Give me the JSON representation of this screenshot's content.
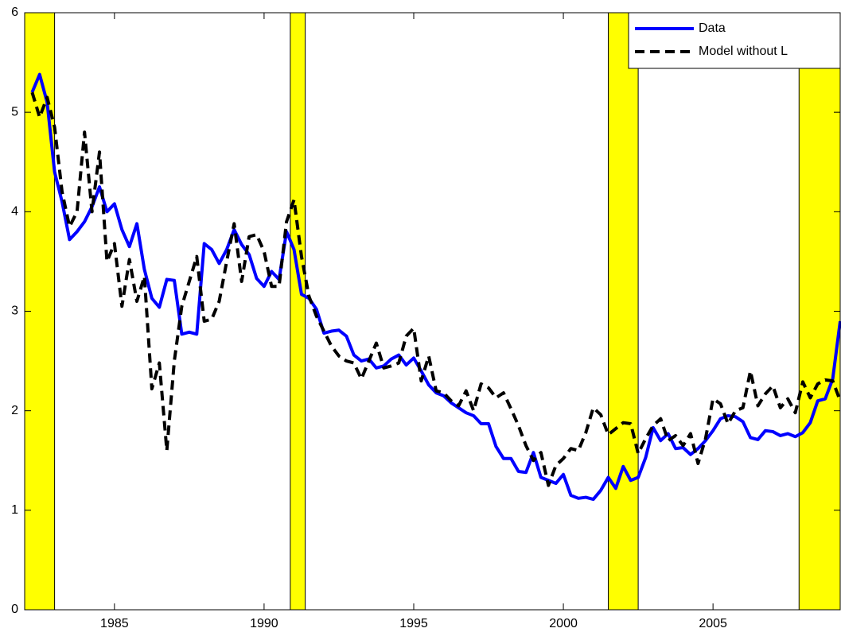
{
  "chart_data": {
    "type": "line",
    "x": [
      1982.25,
      1982.5,
      1982.75,
      1983,
      1983.25,
      1983.5,
      1983.75,
      1984,
      1984.25,
      1984.5,
      1984.75,
      1985,
      1985.25,
      1985.5,
      1985.75,
      1986,
      1986.25,
      1986.5,
      1986.75,
      1987,
      1987.25,
      1987.5,
      1987.75,
      1988,
      1988.25,
      1988.5,
      1988.75,
      1989,
      1989.25,
      1989.5,
      1989.75,
      1990,
      1990.25,
      1990.5,
      1990.75,
      1991,
      1991.25,
      1991.5,
      1991.75,
      1992,
      1992.25,
      1992.5,
      1992.75,
      1993,
      1993.25,
      1993.5,
      1993.75,
      1994,
      1994.25,
      1994.5,
      1994.75,
      1995,
      1995.25,
      1995.5,
      1995.75,
      1996,
      1996.25,
      1996.5,
      1996.75,
      1997,
      1997.25,
      1997.5,
      1997.75,
      1998,
      1998.25,
      1998.5,
      1998.75,
      1999,
      1999.25,
      1999.5,
      1999.75,
      2000,
      2000.25,
      2000.5,
      2000.75,
      2001,
      2001.25,
      2001.5,
      2001.75,
      2002,
      2002.25,
      2002.5,
      2002.75,
      2003,
      2003.25,
      2003.5,
      2003.75,
      2004,
      2004.25,
      2004.5,
      2004.75,
      2005,
      2005.25,
      2005.5,
      2005.75,
      2006,
      2006.25,
      2006.5,
      2006.75,
      2007,
      2007.25,
      2007.5,
      2007.75,
      2008,
      2008.25,
      2008.5,
      2008.75,
      2009,
      2009.25
    ],
    "series": [
      {
        "name": "Data",
        "color": "#0000ff",
        "dash": false,
        "values": [
          5.2,
          5.38,
          5.1,
          4.4,
          4.1,
          3.72,
          3.8,
          3.9,
          4.05,
          4.25,
          4.0,
          4.08,
          3.82,
          3.65,
          3.88,
          3.42,
          3.13,
          3.04,
          3.32,
          3.31,
          2.77,
          2.79,
          2.77,
          3.68,
          3.62,
          3.48,
          3.62,
          3.82,
          3.67,
          3.57,
          3.33,
          3.25,
          3.4,
          3.32,
          3.8,
          3.62,
          3.17,
          3.13,
          3.02,
          2.78,
          2.8,
          2.81,
          2.75,
          2.56,
          2.5,
          2.52,
          2.43,
          2.45,
          2.52,
          2.56,
          2.46,
          2.53,
          2.4,
          2.26,
          2.18,
          2.15,
          2.08,
          2.03,
          1.98,
          1.95,
          1.87,
          1.87,
          1.64,
          1.52,
          1.52,
          1.39,
          1.38,
          1.58,
          1.33,
          1.3,
          1.27,
          1.36,
          1.15,
          1.12,
          1.13,
          1.11,
          1.2,
          1.33,
          1.22,
          1.44,
          1.3,
          1.33,
          1.53,
          1.83,
          1.7,
          1.77,
          1.62,
          1.63,
          1.56,
          1.62,
          1.7,
          1.8,
          1.92,
          1.95,
          1.94,
          1.89,
          1.73,
          1.71,
          1.8,
          1.79,
          1.75,
          1.77,
          1.74,
          1.78,
          1.88,
          2.1,
          2.12,
          2.32,
          2.9
        ]
      },
      {
        "name": "Model without L",
        "color": "#000000",
        "dash": true,
        "values": [
          5.2,
          4.95,
          5.15,
          4.85,
          4.2,
          3.85,
          4.0,
          4.8,
          4.0,
          4.6,
          3.5,
          3.68,
          3.05,
          3.52,
          3.1,
          3.35,
          2.22,
          2.48,
          1.6,
          2.5,
          3.05,
          3.3,
          3.55,
          2.9,
          2.92,
          3.1,
          3.5,
          3.88,
          3.3,
          3.75,
          3.77,
          3.6,
          3.25,
          3.25,
          3.9,
          4.12,
          3.55,
          3.15,
          2.95,
          2.8,
          2.65,
          2.55,
          2.5,
          2.48,
          2.32,
          2.5,
          2.68,
          2.43,
          2.45,
          2.48,
          2.75,
          2.83,
          2.3,
          2.55,
          2.2,
          2.18,
          2.1,
          2.05,
          2.2,
          2.0,
          2.27,
          2.23,
          2.13,
          2.18,
          2.02,
          1.85,
          1.65,
          1.5,
          1.58,
          1.25,
          1.45,
          1.52,
          1.62,
          1.6,
          1.78,
          2.03,
          1.96,
          1.76,
          1.82,
          1.88,
          1.87,
          1.57,
          1.72,
          1.85,
          1.92,
          1.7,
          1.75,
          1.65,
          1.77,
          1.47,
          1.72,
          2.12,
          2.07,
          1.87,
          2.0,
          2.03,
          2.4,
          2.05,
          2.17,
          2.25,
          2.03,
          2.12,
          1.98,
          2.29,
          2.13,
          2.27,
          2.31,
          2.3,
          2.1
        ]
      }
    ],
    "shaded_ranges": [
      [
        1982,
        1983
      ],
      [
        1990.875,
        1991.375
      ],
      [
        2001.5,
        2002.5
      ],
      [
        2007.875,
        2009.25
      ]
    ],
    "shade_color": "#ffff00",
    "xlim": [
      1982,
      2009.25
    ],
    "xticks": [
      1985,
      1990,
      1995,
      2000,
      2005
    ],
    "ylim": [
      0,
      6
    ],
    "yticks": [
      0,
      1,
      2,
      3,
      4,
      5,
      6
    ],
    "legend": "top-right"
  }
}
